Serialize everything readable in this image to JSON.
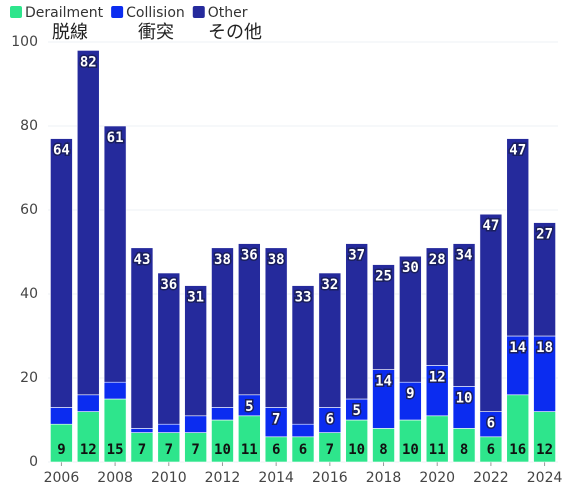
{
  "chart_data": {
    "type": "stacked_bar",
    "categories": [
      2006,
      2007,
      2008,
      2009,
      2010,
      2011,
      2012,
      2013,
      2014,
      2015,
      2016,
      2017,
      2018,
      2019,
      2020,
      2021,
      2022,
      2023,
      2024
    ],
    "series": [
      {
        "name": "Derailment",
        "color": "#2ee58c",
        "values": [
          9,
          12,
          15,
          7,
          7,
          7,
          10,
          11,
          6,
          6,
          7,
          10,
          8,
          10,
          11,
          8,
          6,
          16,
          12
        ]
      },
      {
        "name": "Collision",
        "color": "#0b2cf0",
        "values": [
          4,
          4,
          4,
          1,
          2,
          4,
          3,
          5,
          7,
          3,
          6,
          5,
          14,
          9,
          12,
          10,
          6,
          14,
          18
        ]
      },
      {
        "name": "Other",
        "color": "#252a9c",
        "values": [
          64,
          82,
          61,
          43,
          36,
          31,
          38,
          36,
          38,
          33,
          32,
          37,
          25,
          30,
          28,
          34,
          47,
          47,
          27
        ]
      }
    ],
    "annotations": [
      "脱線",
      "衝突",
      "その他"
    ],
    "ylim": [
      0,
      100
    ],
    "yticks": [
      0,
      20,
      40,
      60,
      80,
      100
    ],
    "xticks": [
      2006,
      2008,
      2010,
      2012,
      2014,
      2016,
      2018,
      2020,
      2022,
      2024
    ],
    "grid": true
  }
}
